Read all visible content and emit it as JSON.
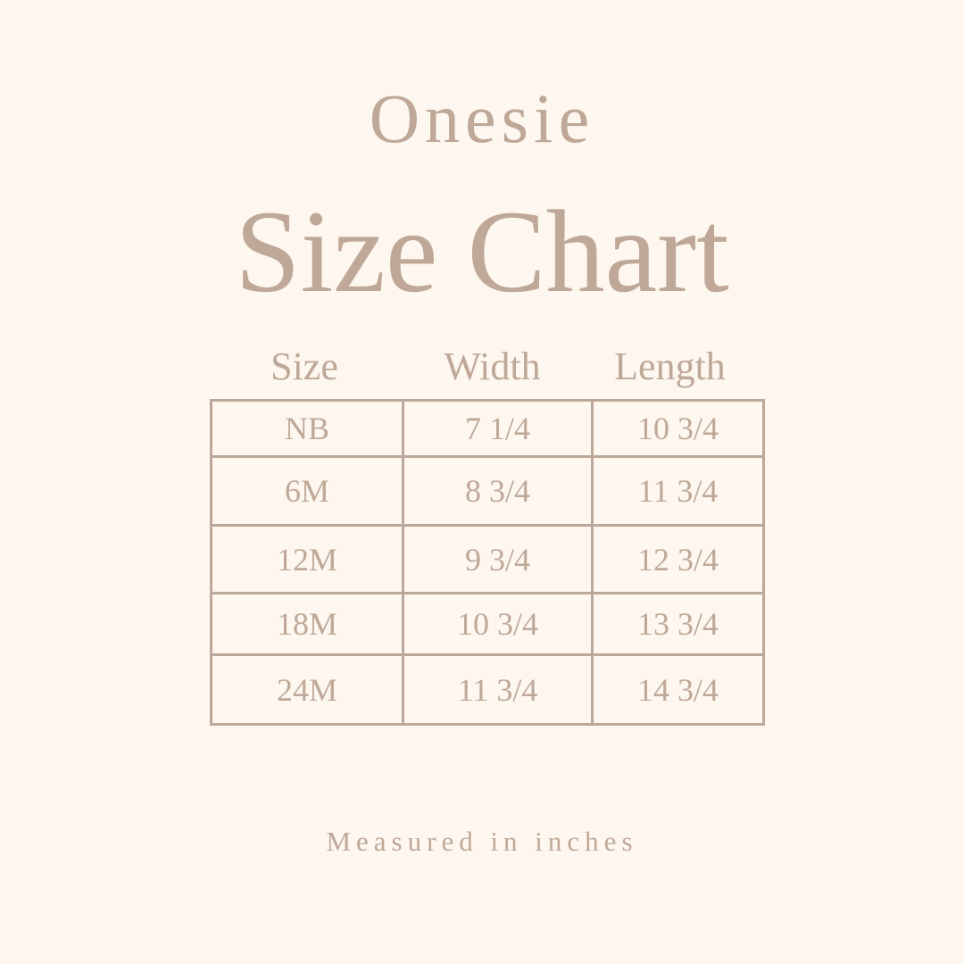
{
  "heading": {
    "subtitle": "Onesie",
    "title": "Size Chart"
  },
  "table": {
    "headers": [
      "Size",
      "Width",
      "Length"
    ],
    "rows": [
      [
        "NB",
        "7 1/4",
        "10 3/4"
      ],
      [
        "6M",
        "8 3/4",
        "11 3/4"
      ],
      [
        "12M",
        "9 3/4",
        "12 3/4"
      ],
      [
        "18M",
        "10 3/4",
        "13 3/4"
      ],
      [
        "24M",
        "11 3/4",
        "14 3/4"
      ]
    ]
  },
  "footer": "Measured in inches",
  "colors": {
    "background": "#fdf7f0",
    "text": "#bfa897",
    "border": "#bba898"
  }
}
